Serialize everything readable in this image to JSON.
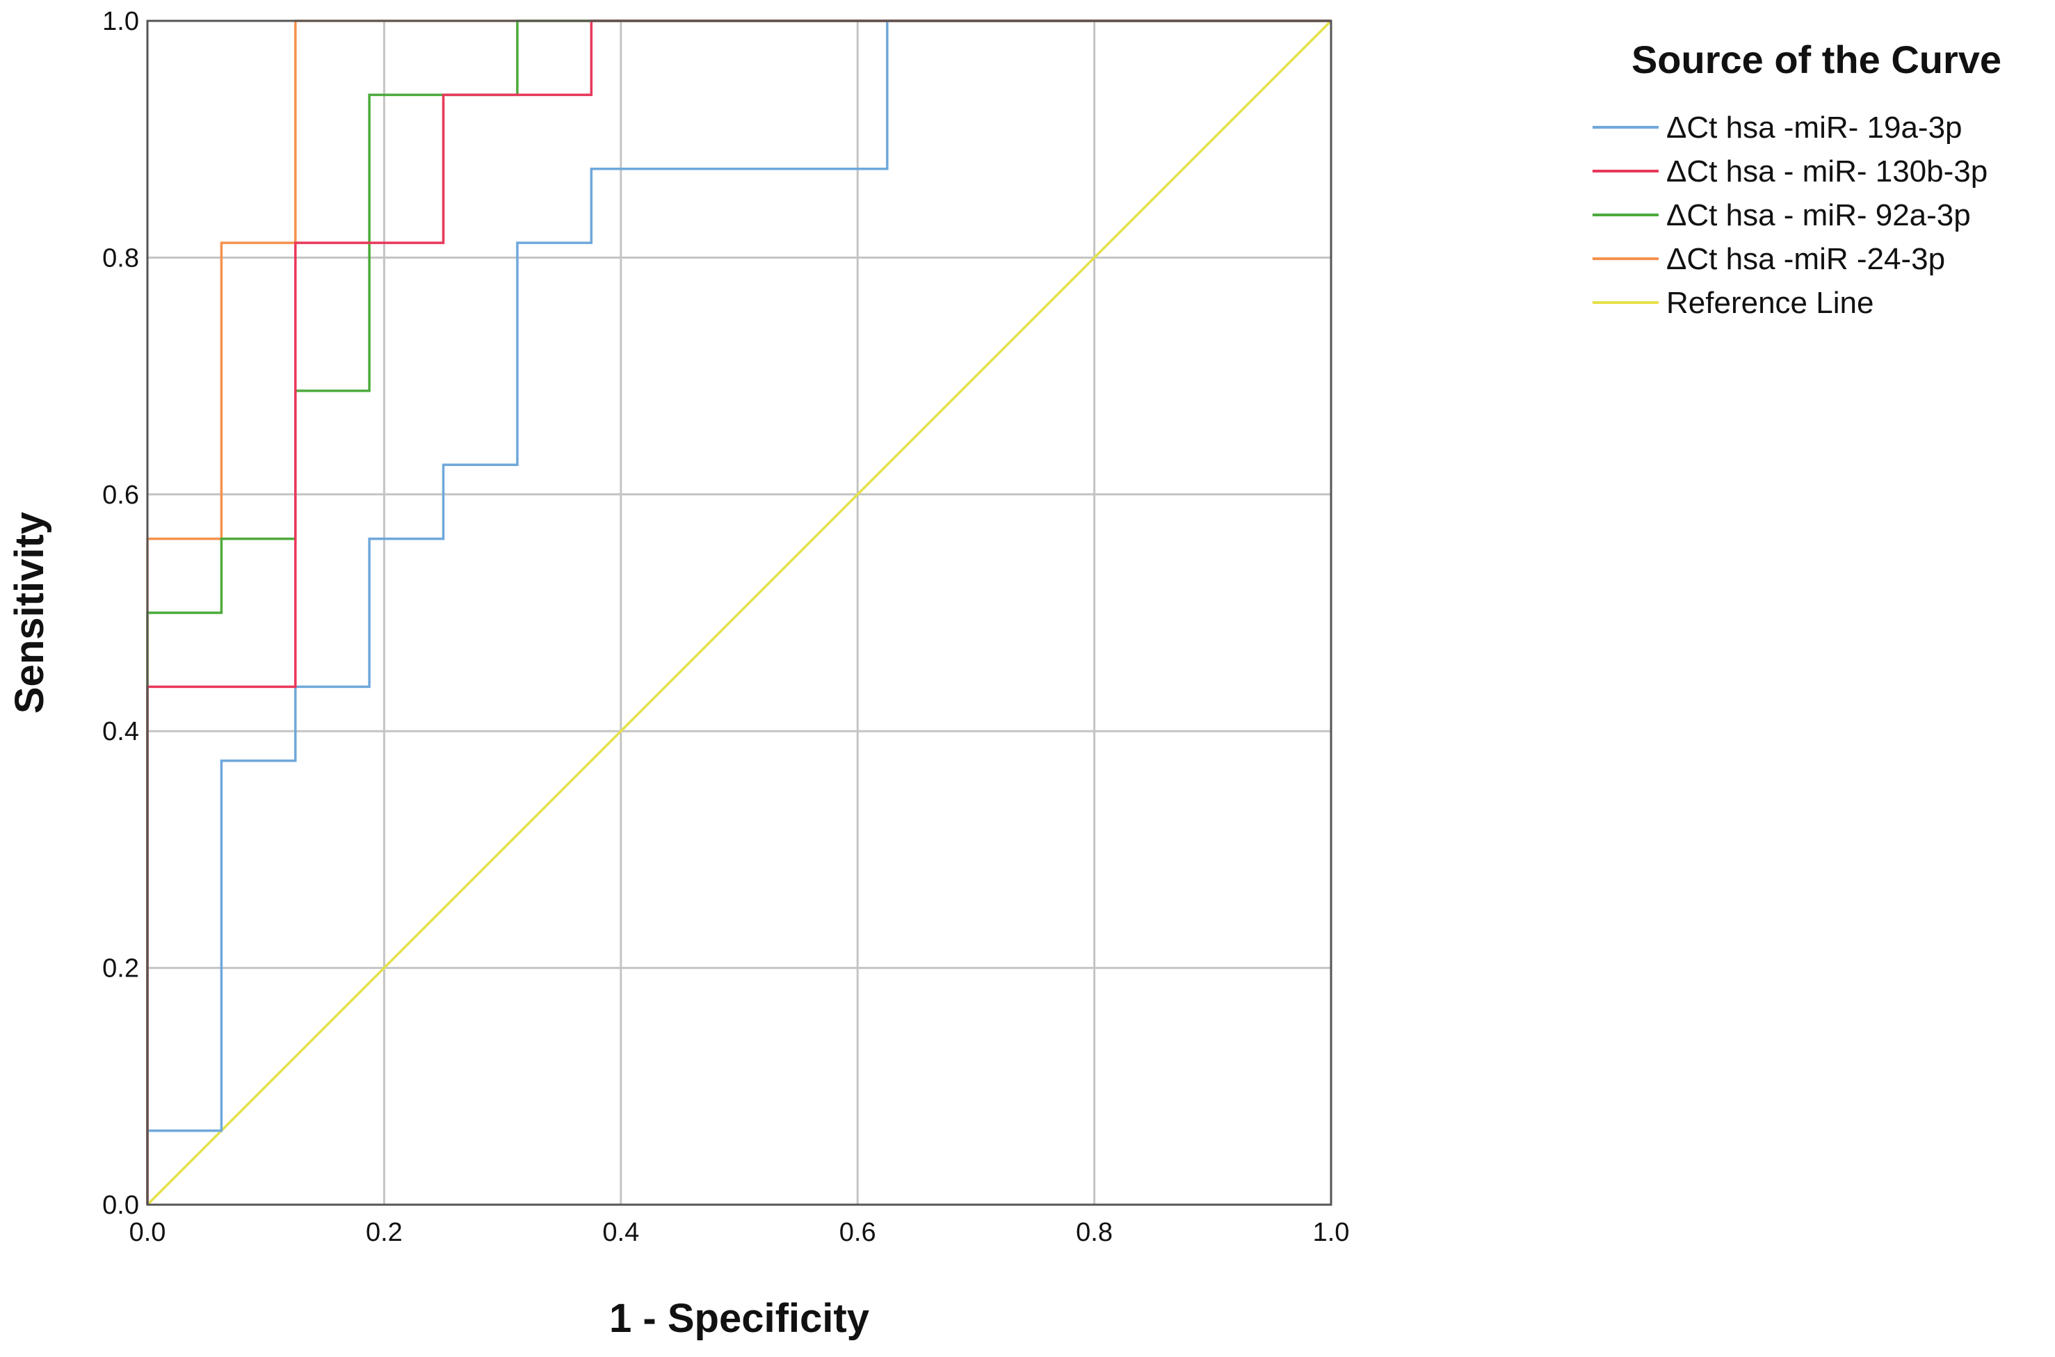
{
  "chart_data": {
    "type": "line",
    "title": "",
    "xlabel": "1 - Specificity",
    "ylabel": "Sensitivity",
    "xlim": [
      0,
      1
    ],
    "ylim": [
      0,
      1
    ],
    "grid": true,
    "x_ticks": [
      "0.0",
      "0.2",
      "0.4",
      "0.6",
      "0.8",
      "1.0"
    ],
    "y_ticks": [
      "0.0",
      "0.2",
      "0.4",
      "0.6",
      "0.8",
      "1.0"
    ],
    "legend": {
      "title": "Source of the Curve",
      "placement": "top-right outside"
    },
    "series": [
      {
        "name": "ΔCt hsa -miR- 19a-3p",
        "color": "#6fa8dc",
        "x": [
          0,
          0,
          0.0625,
          0.0625,
          0.125,
          0.125,
          0.1875,
          0.1875,
          0.25,
          0.25,
          0.3125,
          0.3125,
          0.375,
          0.375,
          0.625,
          0.625,
          1.0
        ],
        "y": [
          0,
          0.0625,
          0.0625,
          0.375,
          0.375,
          0.4375,
          0.4375,
          0.5625,
          0.5625,
          0.625,
          0.625,
          0.8125,
          0.8125,
          0.875,
          0.875,
          1.0,
          1.0
        ]
      },
      {
        "name": "ΔCt hsa - miR- 130b-3p",
        "color": "#e8385a",
        "x": [
          0,
          0,
          0.125,
          0.125,
          0.25,
          0.25,
          0.375,
          0.375,
          1.0
        ],
        "y": [
          0,
          0.4375,
          0.4375,
          0.8125,
          0.8125,
          0.9375,
          0.9375,
          1.0,
          1.0
        ]
      },
      {
        "name": "ΔCt hsa - miR- 92a-3p",
        "color": "#4caa3c",
        "x": [
          0,
          0,
          0.0625,
          0.0625,
          0.125,
          0.125,
          0.1875,
          0.1875,
          0.3125,
          0.3125,
          1.0
        ],
        "y": [
          0,
          0.5,
          0.5,
          0.5625,
          0.5625,
          0.6875,
          0.6875,
          0.9375,
          0.9375,
          1.0,
          1.0
        ]
      },
      {
        "name": "ΔCt hsa -miR -24-3p",
        "color": "#f5924e",
        "x": [
          0,
          0,
          0.0625,
          0.0625,
          0.125,
          0.125,
          1.0
        ],
        "y": [
          0,
          0.5625,
          0.5625,
          0.8125,
          0.8125,
          1.0,
          1.0
        ]
      },
      {
        "name": "Reference Line",
        "color": "#e6e04a",
        "x": [
          0,
          1
        ],
        "y": [
          0,
          1
        ]
      }
    ]
  }
}
